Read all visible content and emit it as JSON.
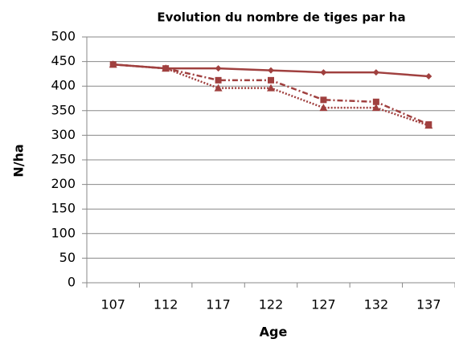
{
  "chart_data": {
    "type": "line",
    "title": "Evolution du nombre de tiges par ha",
    "x_label": "Age",
    "y_label": "N/ha",
    "categories": [
      "107",
      "112",
      "117",
      "122",
      "127",
      "132",
      "137"
    ],
    "series": [
      {
        "color": "#a0403f",
        "dash": "solid",
        "marker": "diamond",
        "values": [
          444,
          436,
          436,
          432,
          428,
          428,
          420
        ]
      },
      {
        "color": "#a0403f",
        "dash": "dashdot",
        "marker": "square",
        "values": [
          444,
          436,
          412,
          412,
          372,
          368,
          322
        ]
      },
      {
        "color": "#a0403f",
        "dash": "dotted",
        "marker": "triangle",
        "values": [
          444,
          436,
          396,
          396,
          356,
          356,
          320
        ]
      }
    ],
    "ylim": [
      0,
      500
    ],
    "yticks": [
      0,
      50,
      100,
      150,
      200,
      250,
      300,
      350,
      400,
      450,
      500
    ],
    "grid": true
  }
}
